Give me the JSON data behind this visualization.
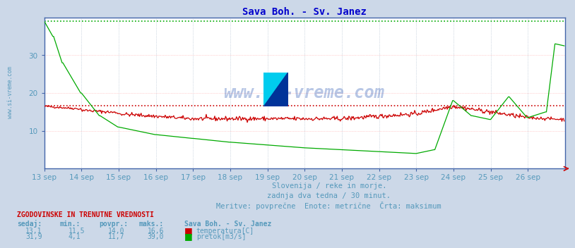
{
  "title": "Sava Boh. - Sv. Janez",
  "title_color": "#0000cc",
  "bg_color": "#ccd8e8",
  "plot_bg_color": "#ffffff",
  "subtitle_lines": [
    "Slovenija / reke in morje.",
    "zadnja dva tedna / 30 minut.",
    "Meritve: povprečne  Enote: metrične  Črta: maksimum"
  ],
  "subtitle_color": "#5599bb",
  "footer_header": "ZGODOVINSKE IN TRENUTNE VREDNOSTI",
  "footer_cols": [
    "sedaj:",
    "min.:",
    "povpr.:",
    "maks.:"
  ],
  "footer_row1": [
    "13,1",
    "11,5",
    "14,0",
    "16,6"
  ],
  "footer_row2": [
    "31,9",
    "4,1",
    "11,7",
    "39,0"
  ],
  "footer_series": "Sava Boh. - Sv. Janez",
  "footer_legend1": "temperatura[C]",
  "footer_legend2": "pretok[m3/s]",
  "temp_color": "#cc0000",
  "flow_color": "#00aa00",
  "temp_max": 16.6,
  "flow_max": 39.0,
  "ylim": [
    0,
    40
  ],
  "yticks": [
    10,
    20,
    30
  ],
  "grid_color_h": "#ffaaaa",
  "grid_color_v": "#aabbcc",
  "n_points": 672,
  "xlabel_days": [
    "13 sep",
    "14 sep",
    "15 sep",
    "16 sep",
    "17 sep",
    "18 sep",
    "19 sep",
    "20 sep",
    "21 sep",
    "22 sep",
    "23 sep",
    "24 sep",
    "25 sep",
    "26 sep"
  ],
  "watermark": "www.si-vreme.com",
  "watermark_color": "#1144aa",
  "axis_label_color": "#5599bb",
  "spine_color": "#4466aa",
  "arrow_color": "#cc0000"
}
